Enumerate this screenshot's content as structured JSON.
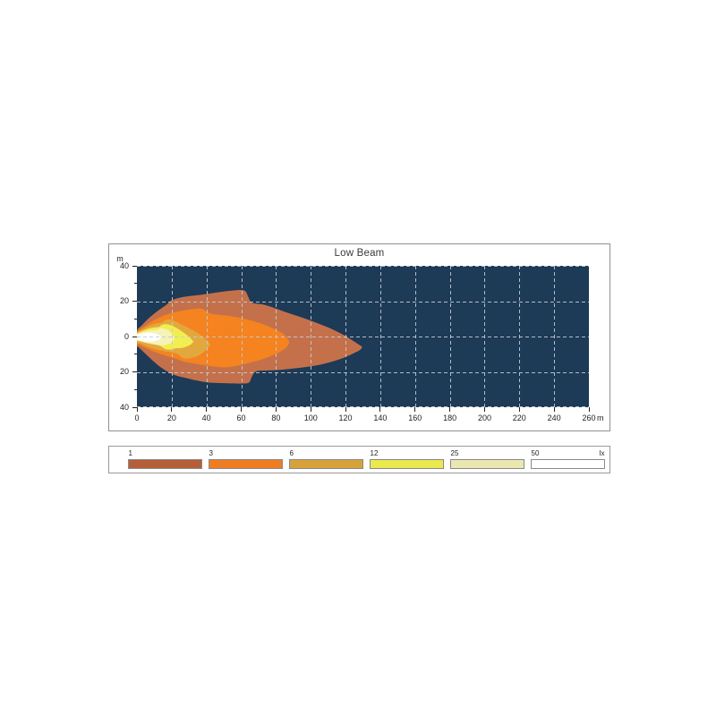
{
  "chart_data": {
    "type": "contour",
    "title": "Low Beam",
    "plot_bg_color": "#1d3a57",
    "grid_color": "#c3ccd4",
    "grid_dash": "4 3",
    "x_axis": {
      "unit": "m",
      "min": 0,
      "max": 260,
      "tick_values": [
        0,
        20,
        40,
        60,
        80,
        100,
        120,
        140,
        160,
        180,
        200,
        220,
        240,
        260
      ],
      "tick_labels": [
        "0",
        "20",
        "40",
        "60",
        "80",
        "100",
        "120",
        "140",
        "160",
        "180",
        "200",
        "220",
        "240",
        "260"
      ]
    },
    "y_axis": {
      "unit": "m",
      "min": -40,
      "max": 40,
      "major_tick_values": [
        40,
        20,
        0,
        -20,
        -40
      ],
      "major_tick_labels": [
        "40",
        "20",
        "0",
        "20",
        "40"
      ],
      "minor_tick_values": [
        30,
        10,
        -10,
        -30
      ]
    },
    "grid_x_values": [
      20,
      40,
      60,
      80,
      100,
      120,
      140,
      160,
      180,
      200,
      220,
      240
    ],
    "grid_y_values": [
      40,
      20,
      0,
      -20,
      -40
    ],
    "legend_unit": "lx",
    "levels": [
      {
        "lux": "1",
        "legend_color": "#b45f38",
        "plot_color": "#c4714b",
        "points": [
          [
            0,
            3
          ],
          [
            3,
            6.5
          ],
          [
            7,
            10.5
          ],
          [
            12,
            14.5
          ],
          [
            17,
            18
          ],
          [
            20,
            20.5
          ],
          [
            24,
            21.8
          ],
          [
            29,
            22.7
          ],
          [
            35,
            23.4
          ],
          [
            41,
            24.2
          ],
          [
            48,
            25.2
          ],
          [
            55,
            26
          ],
          [
            60,
            26.3
          ],
          [
            62.5,
            25.5
          ],
          [
            64,
            22.5
          ],
          [
            65.5,
            19.5
          ],
          [
            68,
            18.7
          ],
          [
            72,
            18.2
          ],
          [
            78,
            16.5
          ],
          [
            85,
            14
          ],
          [
            92,
            11.7
          ],
          [
            100,
            9
          ],
          [
            107,
            6.3
          ],
          [
            113,
            3.8
          ],
          [
            119,
            0.8
          ],
          [
            124,
            -2.2
          ],
          [
            128,
            -4.8
          ],
          [
            129.5,
            -6
          ],
          [
            128,
            -7.8
          ],
          [
            124,
            -9.8
          ],
          [
            119,
            -12
          ],
          [
            113,
            -14
          ],
          [
            106,
            -15.8
          ],
          [
            99,
            -17
          ],
          [
            91,
            -18
          ],
          [
            83,
            -18.8
          ],
          [
            76,
            -19.2
          ],
          [
            70,
            -19.4
          ],
          [
            67.5,
            -20.5
          ],
          [
            66,
            -23
          ],
          [
            64.5,
            -26
          ],
          [
            61,
            -26.6
          ],
          [
            55,
            -26.5
          ],
          [
            48,
            -26.3
          ],
          [
            41,
            -26
          ],
          [
            34,
            -24.8
          ],
          [
            28,
            -23.4
          ],
          [
            23,
            -22.2
          ],
          [
            19,
            -20.6
          ],
          [
            14,
            -17.6
          ],
          [
            10,
            -14.4
          ],
          [
            6,
            -10.8
          ],
          [
            3,
            -8
          ],
          [
            1,
            -6
          ],
          [
            0,
            -5
          ]
        ]
      },
      {
        "lux": "3",
        "legend_color": "#ef7d22",
        "plot_color": "#f5831f",
        "points": [
          [
            0,
            2.2
          ],
          [
            4,
            5.5
          ],
          [
            9,
            8.7
          ],
          [
            14,
            11.2
          ],
          [
            19,
            13
          ],
          [
            25,
            14.4
          ],
          [
            31,
            15.4
          ],
          [
            36,
            15.8
          ],
          [
            38.5,
            15.2
          ],
          [
            40.5,
            13.8
          ],
          [
            43,
            12.8
          ],
          [
            47,
            12.3
          ],
          [
            52,
            11.8
          ],
          [
            58,
            10.8
          ],
          [
            64,
            9.5
          ],
          [
            70,
            7.8
          ],
          [
            75,
            6
          ],
          [
            80,
            3.8
          ],
          [
            84,
            1.5
          ],
          [
            86.5,
            -1
          ],
          [
            87.5,
            -3.5
          ],
          [
            86,
            -6
          ],
          [
            83,
            -8.2
          ],
          [
            79,
            -10.2
          ],
          [
            74,
            -12.2
          ],
          [
            68,
            -14
          ],
          [
            62,
            -15.6
          ],
          [
            56,
            -16.9
          ],
          [
            51,
            -17.4
          ],
          [
            47,
            -17.3
          ],
          [
            44,
            -16.9
          ],
          [
            41,
            -16.5
          ],
          [
            38,
            -16.1
          ],
          [
            33,
            -15.3
          ],
          [
            29,
            -14.5
          ],
          [
            26,
            -13.9
          ],
          [
            24,
            -13.1
          ],
          [
            22,
            -12.4
          ],
          [
            17,
            -11
          ],
          [
            12,
            -9.4
          ],
          [
            8,
            -7.8
          ],
          [
            4,
            -6
          ],
          [
            1,
            -4.5
          ],
          [
            0,
            -3.8
          ]
        ]
      },
      {
        "lux": "6",
        "legend_color": "#d8a23a",
        "plot_color": "#e2a83e",
        "points": [
          [
            0,
            1.9
          ],
          [
            3,
            3.9
          ],
          [
            6,
            5.5
          ],
          [
            9,
            6.8
          ],
          [
            12,
            7.6
          ],
          [
            14.5,
            7.9
          ],
          [
            15.5,
            8.8
          ],
          [
            17,
            9.5
          ],
          [
            19,
            9.6
          ],
          [
            21,
            9.1
          ],
          [
            23,
            8.2
          ],
          [
            25,
            7.1
          ],
          [
            28,
            5.7
          ],
          [
            31,
            4.2
          ],
          [
            34,
            2.5
          ],
          [
            37,
            0.5
          ],
          [
            39.5,
            -1.3
          ],
          [
            41.5,
            -3.2
          ],
          [
            42,
            -4.8
          ],
          [
            40.5,
            -6.8
          ],
          [
            38.5,
            -8.7
          ],
          [
            36.5,
            -10.2
          ],
          [
            34,
            -11.4
          ],
          [
            31,
            -12.2
          ],
          [
            28,
            -12.4
          ],
          [
            26,
            -11.9
          ],
          [
            24.5,
            -10.8
          ],
          [
            23,
            -9.7
          ],
          [
            20.5,
            -9.1
          ],
          [
            17,
            -8.5
          ],
          [
            13,
            -7.8
          ],
          [
            9,
            -6.8
          ],
          [
            5,
            -5.3
          ],
          [
            2,
            -3.9
          ],
          [
            0,
            -3.1
          ]
        ]
      },
      {
        "lux": "12",
        "legend_color": "#eae94d",
        "plot_color": "#f1ee52",
        "points": [
          [
            0,
            1.5
          ],
          [
            3,
            3.1
          ],
          [
            6,
            4.3
          ],
          [
            9,
            5
          ],
          [
            11.5,
            5.3
          ],
          [
            13,
            5.6
          ],
          [
            14,
            6.4
          ],
          [
            15.5,
            6.9
          ],
          [
            17.5,
            6.9
          ],
          [
            19.5,
            6.4
          ],
          [
            21.5,
            5.5
          ],
          [
            23.5,
            4.4
          ],
          [
            25.5,
            3.1
          ],
          [
            28,
            1.4
          ],
          [
            30.5,
            -0.6
          ],
          [
            32,
            -2.2
          ],
          [
            32.3,
            -3.2
          ],
          [
            31,
            -4.4
          ],
          [
            29,
            -5.5
          ],
          [
            26.5,
            -6.3
          ],
          [
            24.5,
            -6.6
          ],
          [
            22.5,
            -6.6
          ],
          [
            21,
            -7.1
          ],
          [
            19,
            -7.4
          ],
          [
            16.5,
            -7.2
          ],
          [
            15,
            -6.4
          ],
          [
            13.5,
            -5.4
          ],
          [
            11.5,
            -4.8
          ],
          [
            8.5,
            -4.3
          ],
          [
            5.5,
            -3.7
          ],
          [
            2.5,
            -2.9
          ],
          [
            0,
            -2
          ]
        ]
      },
      {
        "lux": "25",
        "legend_color": "#ebe7b1",
        "plot_color": "#f6f2ba",
        "points": [
          [
            0,
            1.1
          ],
          [
            2.5,
            2.1
          ],
          [
            5,
            2.9
          ],
          [
            7.5,
            3.4
          ],
          [
            10,
            3.6
          ],
          [
            11.5,
            3.8
          ],
          [
            12.5,
            4.4
          ],
          [
            14,
            4.7
          ],
          [
            15.5,
            4.4
          ],
          [
            17,
            3.9
          ],
          [
            18.5,
            3
          ],
          [
            20,
            1.8
          ],
          [
            21.2,
            0.2
          ],
          [
            21.5,
            -1.2
          ],
          [
            20.5,
            -2.7
          ],
          [
            18.8,
            -3.9
          ],
          [
            16.8,
            -4.7
          ],
          [
            14.8,
            -5
          ],
          [
            12.8,
            -4.9
          ],
          [
            10.8,
            -4.5
          ],
          [
            8.3,
            -4.1
          ],
          [
            5.3,
            -3.5
          ],
          [
            2.5,
            -2.7
          ],
          [
            0,
            -1.8
          ]
        ]
      },
      {
        "lux": "50",
        "legend_color": "#ffffff",
        "plot_color": "#ffffff",
        "points": [
          [
            0,
            0.9
          ],
          [
            2,
            1.6
          ],
          [
            4.5,
            2.1
          ],
          [
            7,
            2.2
          ],
          [
            9.2,
            2
          ],
          [
            11.2,
            1.5
          ],
          [
            12.8,
            0.8
          ],
          [
            13.8,
            -0.2
          ],
          [
            13.3,
            -1.4
          ],
          [
            11.8,
            -2.2
          ],
          [
            9.8,
            -2.7
          ],
          [
            7.2,
            -2.9
          ],
          [
            4.7,
            -2.8
          ],
          [
            2.3,
            -2.4
          ],
          [
            0,
            -1.6
          ]
        ]
      }
    ]
  }
}
